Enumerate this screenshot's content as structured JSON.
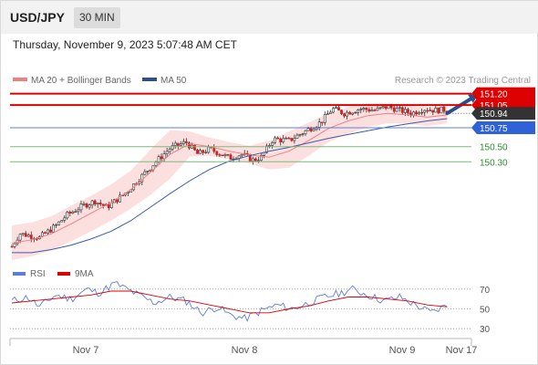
{
  "header": {
    "pair": "USD/JPY",
    "timeframe": "30 MIN"
  },
  "timestamp": "Thursday, November 9, 2023 5:07:48 AM CET",
  "legend": {
    "items": [
      {
        "label": "MA 20 + Bollinger Bands",
        "color": "#f08080"
      },
      {
        "label": "MA 50",
        "color": "#2b4f8c"
      }
    ],
    "credit": "Research © 2023 Trading Central"
  },
  "rsi_legend": {
    "items": [
      {
        "label": "RSI",
        "color": "#5b7fd6"
      },
      {
        "label": "9MA",
        "color": "#e00000"
      }
    ]
  },
  "colors": {
    "resistance": "#dd0000",
    "support": "#5b7fd6",
    "support_minor": "#7cb97c",
    "support_label": "#2e8b2e",
    "bull": "#ffffff",
    "bear": "#cc2222",
    "band_fill": "#fbd5d5",
    "price_tag": "#333333",
    "arrow": "#2b4f8c"
  },
  "chart_data": [
    {
      "type": "candlestick",
      "title": "",
      "ylim": [
        149.05,
        151.28
      ],
      "levels": [
        {
          "value": 151.2,
          "label": "151.20",
          "kind": "resistance"
        },
        {
          "value": 151.05,
          "label": "151.05",
          "kind": "resistance"
        },
        {
          "value": 150.94,
          "label": "150.94",
          "kind": "last"
        },
        {
          "value": 150.75,
          "label": "150.75",
          "kind": "support"
        },
        {
          "value": 150.5,
          "label": "150.50",
          "kind": "support-minor"
        },
        {
          "value": 150.3,
          "label": "150.30",
          "kind": "support-minor"
        }
      ],
      "x_labels": [
        "Nov 7",
        "Nov 8",
        "Nov 9",
        "Nov 17"
      ],
      "ma20": [
        [
          0,
          149.22
        ],
        [
          10,
          149.27
        ],
        [
          20,
          149.35
        ],
        [
          30,
          149.48
        ],
        [
          40,
          149.62
        ],
        [
          50,
          149.76
        ],
        [
          60,
          149.93
        ],
        [
          70,
          150.16
        ],
        [
          80,
          150.4
        ],
        [
          90,
          150.54
        ],
        [
          100,
          150.5
        ],
        [
          110,
          150.44
        ],
        [
          120,
          150.39
        ],
        [
          130,
          150.36
        ],
        [
          140,
          150.44
        ],
        [
          150,
          150.58
        ],
        [
          160,
          150.74
        ],
        [
          170,
          150.84
        ],
        [
          180,
          150.91
        ],
        [
          190,
          150.94
        ],
        [
          200,
          150.92
        ],
        [
          210,
          150.89
        ],
        [
          220,
          150.92
        ]
      ],
      "bb_upper": [
        [
          0,
          149.46
        ],
        [
          10,
          149.5
        ],
        [
          20,
          149.58
        ],
        [
          30,
          149.72
        ],
        [
          40,
          149.85
        ],
        [
          50,
          150.0
        ],
        [
          60,
          150.18
        ],
        [
          70,
          150.46
        ],
        [
          80,
          150.72
        ],
        [
          90,
          150.7
        ],
        [
          100,
          150.62
        ],
        [
          110,
          150.56
        ],
        [
          120,
          150.51
        ],
        [
          130,
          150.58
        ],
        [
          140,
          150.7
        ],
        [
          150,
          150.82
        ],
        [
          160,
          150.94
        ],
        [
          170,
          151.02
        ],
        [
          180,
          151.07
        ],
        [
          190,
          151.07
        ],
        [
          200,
          151.04
        ],
        [
          210,
          151.02
        ],
        [
          220,
          151.03
        ]
      ],
      "bb_lower": [
        [
          0,
          149.0
        ],
        [
          10,
          149.05
        ],
        [
          20,
          149.13
        ],
        [
          30,
          149.25
        ],
        [
          40,
          149.38
        ],
        [
          50,
          149.52
        ],
        [
          60,
          149.68
        ],
        [
          70,
          149.86
        ],
        [
          80,
          150.08
        ],
        [
          90,
          150.37
        ],
        [
          100,
          150.38
        ],
        [
          110,
          150.33
        ],
        [
          120,
          150.28
        ],
        [
          130,
          150.2
        ],
        [
          140,
          150.22
        ],
        [
          150,
          150.38
        ],
        [
          160,
          150.56
        ],
        [
          170,
          150.67
        ],
        [
          180,
          150.76
        ],
        [
          190,
          150.81
        ],
        [
          200,
          150.8
        ],
        [
          210,
          150.77
        ],
        [
          220,
          150.81
        ]
      ],
      "ma50": [
        [
          0,
          149.1
        ],
        [
          10,
          149.1
        ],
        [
          20,
          149.14
        ],
        [
          30,
          149.2
        ],
        [
          40,
          149.28
        ],
        [
          50,
          149.38
        ],
        [
          60,
          149.52
        ],
        [
          70,
          149.7
        ],
        [
          80,
          149.88
        ],
        [
          90,
          150.05
        ],
        [
          100,
          150.2
        ],
        [
          110,
          150.31
        ],
        [
          120,
          150.38
        ],
        [
          130,
          150.44
        ],
        [
          140,
          150.49
        ],
        [
          150,
          150.55
        ],
        [
          160,
          150.61
        ],
        [
          170,
          150.66
        ],
        [
          180,
          150.71
        ],
        [
          190,
          150.76
        ],
        [
          200,
          150.8
        ],
        [
          210,
          150.84
        ],
        [
          220,
          150.87
        ]
      ],
      "candle_anchors": [
        [
          0,
          149.18
        ],
        [
          4,
          149.35
        ],
        [
          10,
          149.32
        ],
        [
          14,
          149.3
        ],
        [
          22,
          149.45
        ],
        [
          28,
          149.6
        ],
        [
          36,
          149.72
        ],
        [
          42,
          149.78
        ],
        [
          48,
          149.7
        ],
        [
          58,
          149.9
        ],
        [
          66,
          150.12
        ],
        [
          72,
          150.28
        ],
        [
          80,
          150.48
        ],
        [
          88,
          150.56
        ],
        [
          94,
          150.4
        ],
        [
          100,
          150.47
        ],
        [
          110,
          150.35
        ],
        [
          116,
          150.4
        ],
        [
          122,
          150.32
        ],
        [
          126,
          150.36
        ],
        [
          132,
          150.6
        ],
        [
          140,
          150.58
        ],
        [
          148,
          150.7
        ],
        [
          156,
          150.82
        ],
        [
          162,
          151.0
        ],
        [
          168,
          150.94
        ],
        [
          176,
          151.0
        ],
        [
          184,
          150.98
        ],
        [
          190,
          151.03
        ],
        [
          196,
          150.98
        ],
        [
          202,
          150.94
        ],
        [
          208,
          151.0
        ],
        [
          214,
          150.98
        ],
        [
          220,
          150.99
        ]
      ],
      "forecast": {
        "from": [
          220,
          150.94
        ],
        "to": [
          236,
          151.2
        ]
      }
    },
    {
      "type": "line",
      "title": "",
      "ylim": [
        20,
        80
      ],
      "y_ticks": [
        {
          "value": 70,
          "label": "70"
        },
        {
          "value": 50,
          "label": "50"
        },
        {
          "value": 30,
          "label": "30"
        }
      ],
      "series": [
        {
          "name": "RSI",
          "points": [
            [
              0,
              58
            ],
            [
              8,
              62
            ],
            [
              14,
              52
            ],
            [
              22,
              64
            ],
            [
              30,
              60
            ],
            [
              38,
              70
            ],
            [
              44,
              66
            ],
            [
              52,
              76
            ],
            [
              58,
              70
            ],
            [
              66,
              62
            ],
            [
              72,
              56
            ],
            [
              80,
              62
            ],
            [
              88,
              58
            ],
            [
              96,
              46
            ],
            [
              104,
              52
            ],
            [
              110,
              44
            ],
            [
              118,
              40
            ],
            [
              126,
              48
            ],
            [
              134,
              54
            ],
            [
              142,
              50
            ],
            [
              150,
              56
            ],
            [
              158,
              62
            ],
            [
              166,
              66
            ],
            [
              172,
              70
            ],
            [
              180,
              64
            ],
            [
              188,
              58
            ],
            [
              196,
              62
            ],
            [
              204,
              54
            ],
            [
              212,
              46
            ],
            [
              220,
              54
            ]
          ]
        },
        {
          "name": "9MA",
          "points": [
            [
              0,
              56
            ],
            [
              10,
              58
            ],
            [
              20,
              60
            ],
            [
              30,
              62
            ],
            [
              40,
              64
            ],
            [
              50,
              68
            ],
            [
              60,
              68
            ],
            [
              70,
              64
            ],
            [
              80,
              60
            ],
            [
              90,
              58
            ],
            [
              100,
              54
            ],
            [
              110,
              50
            ],
            [
              120,
              46
            ],
            [
              130,
              46
            ],
            [
              140,
              50
            ],
            [
              150,
              53
            ],
            [
              160,
              58
            ],
            [
              170,
              62
            ],
            [
              180,
              62
            ],
            [
              190,
              60
            ],
            [
              200,
              58
            ],
            [
              210,
              54
            ],
            [
              220,
              52
            ]
          ]
        }
      ]
    }
  ]
}
